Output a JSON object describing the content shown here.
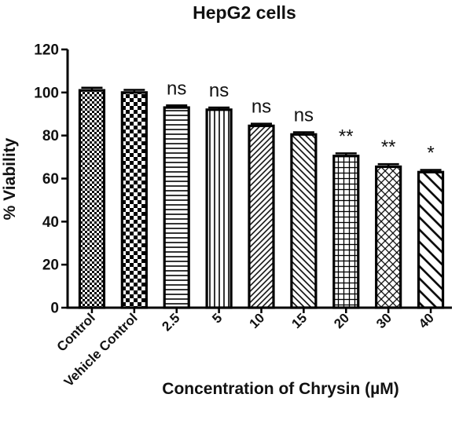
{
  "chart_data": {
    "type": "bar",
    "title": "HepG2 cells",
    "xlabel": "Concentration of Chrysin (µM)",
    "ylabel": "% Viability",
    "ylim": [
      0,
      120
    ],
    "yticks": [
      "0",
      "20",
      "40",
      "60",
      "80",
      "100",
      "120"
    ],
    "categories": [
      "Control",
      "Vehicle Control",
      "2.5",
      "5",
      "10",
      "15",
      "20",
      "30",
      "40"
    ],
    "values": [
      101,
      100,
      93,
      92,
      84.5,
      80.5,
      70.5,
      65.5,
      63
    ],
    "errors": [
      1.2,
      1.2,
      1.0,
      1.0,
      1.0,
      1.0,
      1.2,
      1.2,
      1.0
    ],
    "significance": [
      "",
      "",
      "ns",
      "ns",
      "ns",
      "ns",
      "**",
      "**",
      "*"
    ],
    "patterns": [
      "small-checker",
      "large-checker",
      "horizontal-lines",
      "vertical-lines",
      "diagonal-dense",
      "diagonal-down",
      "grid",
      "crosshatch",
      "diagonal-wide"
    ],
    "grid": false,
    "legend": "none"
  }
}
